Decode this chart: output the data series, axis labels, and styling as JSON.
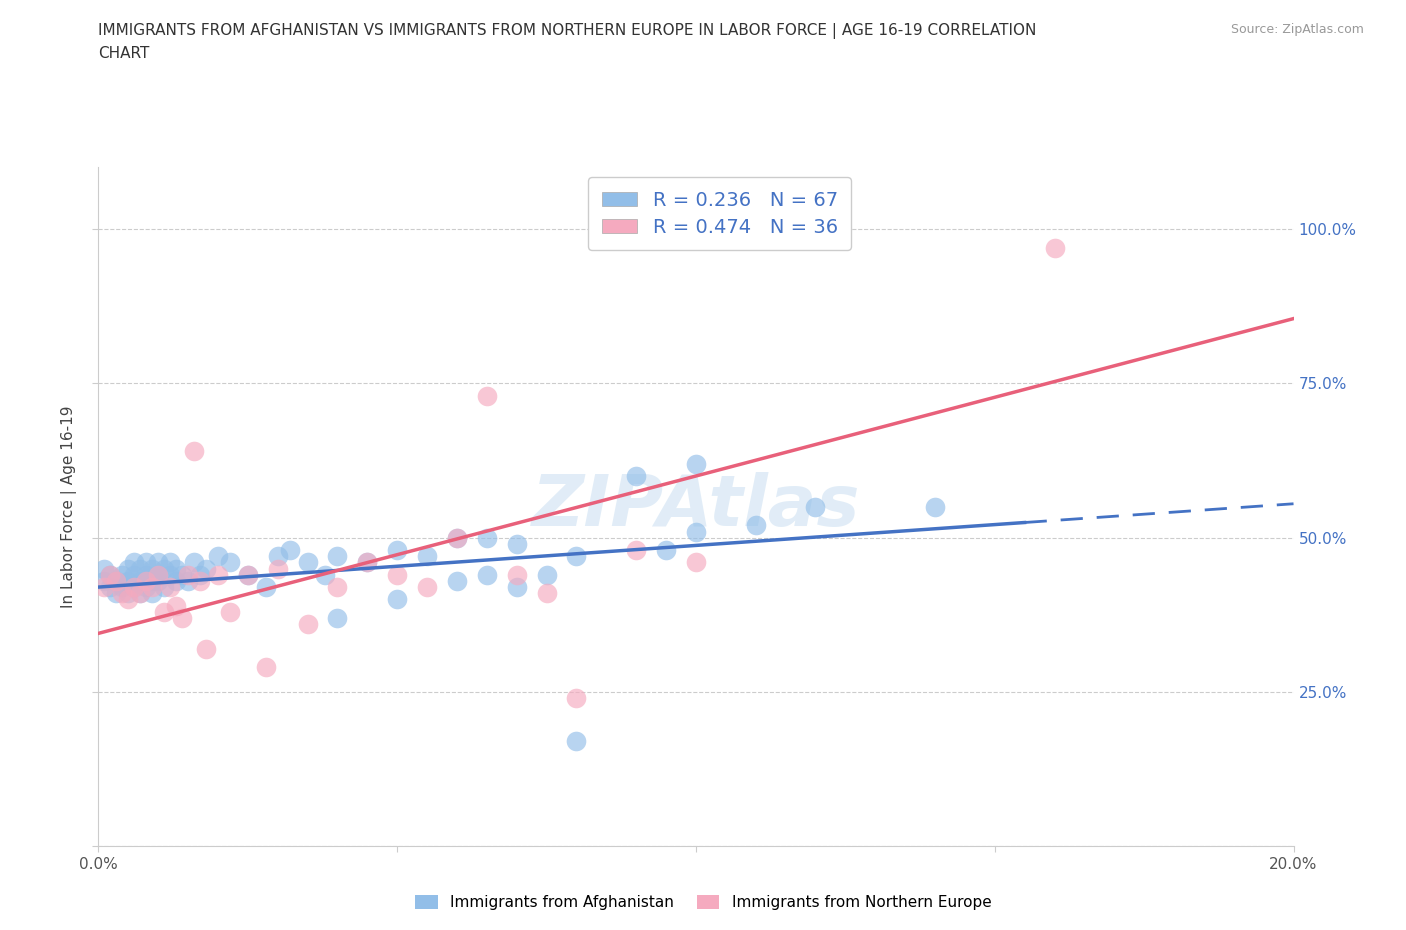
{
  "title_line1": "IMMIGRANTS FROM AFGHANISTAN VS IMMIGRANTS FROM NORTHERN EUROPE IN LABOR FORCE | AGE 16-19 CORRELATION",
  "title_line2": "CHART",
  "source": "Source: ZipAtlas.com",
  "ylabel_label": "In Labor Force | Age 16-19",
  "xlim": [
    0.0,
    0.2
  ],
  "ylim": [
    0.0,
    1.1
  ],
  "color_blue": "#92BEE8",
  "color_pink": "#F5AABF",
  "line_blue": "#4472C4",
  "line_pink": "#E8607A",
  "R_blue": 0.236,
  "N_blue": 67,
  "R_pink": 0.474,
  "N_pink": 36,
  "legend_label_blue": "Immigrants from Afghanistan",
  "legend_label_pink": "Immigrants from Northern Europe",
  "watermark": "ZIPAtlas",
  "blue_x": [
    0.001,
    0.001,
    0.002,
    0.002,
    0.003,
    0.003,
    0.004,
    0.004,
    0.005,
    0.005,
    0.005,
    0.006,
    0.006,
    0.006,
    0.007,
    0.007,
    0.007,
    0.008,
    0.008,
    0.008,
    0.009,
    0.009,
    0.009,
    0.01,
    0.01,
    0.01,
    0.011,
    0.011,
    0.012,
    0.012,
    0.013,
    0.013,
    0.014,
    0.015,
    0.016,
    0.017,
    0.018,
    0.02,
    0.022,
    0.025,
    0.028,
    0.03,
    0.032,
    0.035,
    0.038,
    0.04,
    0.045,
    0.05,
    0.055,
    0.06,
    0.065,
    0.065,
    0.07,
    0.075,
    0.08,
    0.09,
    0.095,
    0.1,
    0.11,
    0.12,
    0.14,
    0.04,
    0.05,
    0.06,
    0.07,
    0.08,
    0.1
  ],
  "blue_y": [
    0.43,
    0.45,
    0.42,
    0.44,
    0.41,
    0.43,
    0.42,
    0.44,
    0.41,
    0.43,
    0.45,
    0.42,
    0.44,
    0.46,
    0.43,
    0.45,
    0.41,
    0.44,
    0.42,
    0.46,
    0.43,
    0.45,
    0.41,
    0.44,
    0.43,
    0.46,
    0.42,
    0.45,
    0.44,
    0.46,
    0.43,
    0.45,
    0.44,
    0.43,
    0.46,
    0.44,
    0.45,
    0.47,
    0.46,
    0.44,
    0.42,
    0.47,
    0.48,
    0.46,
    0.44,
    0.47,
    0.46,
    0.48,
    0.47,
    0.5,
    0.5,
    0.44,
    0.49,
    0.44,
    0.47,
    0.6,
    0.48,
    0.51,
    0.52,
    0.55,
    0.55,
    0.37,
    0.4,
    0.43,
    0.42,
    0.17,
    0.62
  ],
  "pink_x": [
    0.001,
    0.002,
    0.003,
    0.004,
    0.005,
    0.006,
    0.007,
    0.008,
    0.009,
    0.01,
    0.011,
    0.012,
    0.013,
    0.014,
    0.015,
    0.016,
    0.017,
    0.018,
    0.02,
    0.022,
    0.025,
    0.028,
    0.03,
    0.035,
    0.04,
    0.045,
    0.05,
    0.055,
    0.06,
    0.065,
    0.07,
    0.075,
    0.08,
    0.09,
    0.1,
    0.16
  ],
  "pink_y": [
    0.42,
    0.44,
    0.43,
    0.41,
    0.4,
    0.42,
    0.41,
    0.43,
    0.42,
    0.44,
    0.38,
    0.42,
    0.39,
    0.37,
    0.44,
    0.64,
    0.43,
    0.32,
    0.44,
    0.38,
    0.44,
    0.29,
    0.45,
    0.36,
    0.42,
    0.46,
    0.44,
    0.42,
    0.5,
    0.73,
    0.44,
    0.41,
    0.24,
    0.48,
    0.46,
    0.97
  ],
  "blue_line_solid_end": 0.155,
  "blue_line_x0": 0.0,
  "blue_line_x1": 0.2,
  "blue_line_y0": 0.42,
  "blue_line_y1": 0.555,
  "pink_line_x0": 0.0,
  "pink_line_x1": 0.2,
  "pink_line_y0": 0.345,
  "pink_line_y1": 0.855
}
